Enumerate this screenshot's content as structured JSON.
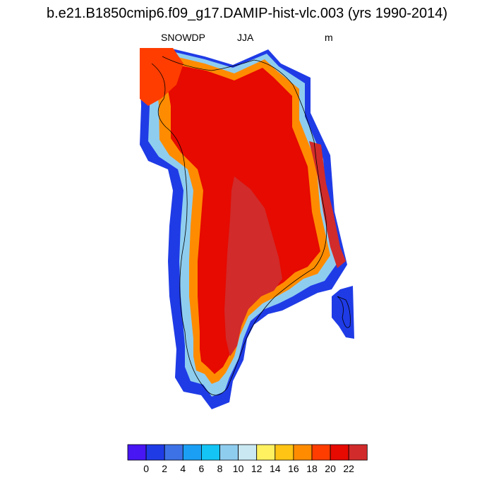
{
  "title": "b.e21.B1850cmip6.f09_g17.DAMIP-hist-vlc.003 (yrs 1990-2014)",
  "left_label": "SNOWDP",
  "center_label": "JJA",
  "right_label": "m",
  "colorbar": {
    "colors": [
      "#4716f2",
      "#1f3be6",
      "#3d72e6",
      "#1a9ff5",
      "#14c4f5",
      "#8fcdef",
      "#c9e8f2",
      "#fff160",
      "#ffc414",
      "#ff8c00",
      "#ff3d00",
      "#e60a00",
      "#d12b2b"
    ],
    "labels": [
      "0",
      "2",
      "4",
      "6",
      "8",
      "10",
      "12",
      "14",
      "16",
      "18",
      "20",
      "22"
    ]
  }
}
